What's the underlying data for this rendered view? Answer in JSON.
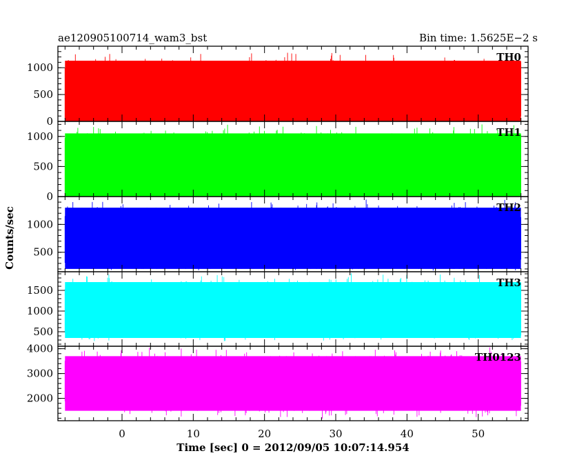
{
  "header": {
    "left_title": "ae120905100714_wam3_bst",
    "right_title": "Bin time: 1.5625E−2 s"
  },
  "chart_data": {
    "type": "line",
    "title": "ae120905100714_wam3_bst",
    "subtitle": "Bin time: 1.5625E−2 s",
    "xlabel": "Time [sec] 0 = 2012/09/05 10:07:14.954",
    "ylabel": "Counts/sec",
    "xlim": [
      -9,
      57
    ],
    "x_ticks": [
      0,
      10,
      20,
      30,
      40,
      50
    ],
    "x_range": [
      -8,
      56
    ],
    "grid": false,
    "panels": [
      {
        "name": "TH0",
        "color": "#ff0000",
        "ylim": [
          0,
          1400
        ],
        "y_ticks": [
          0,
          500,
          1000
        ],
        "band": [
          0,
          1130
        ],
        "peak": 1310,
        "floor": 0
      },
      {
        "name": "TH1",
        "color": "#00ff00",
        "ylim": [
          0,
          1250
        ],
        "y_ticks": [
          0,
          500,
          1000
        ],
        "band": [
          0,
          1050
        ],
        "peak": 1220,
        "floor": 0
      },
      {
        "name": "TH2",
        "color": "#0000ff",
        "ylim": [
          150,
          1500
        ],
        "y_ticks": [
          500,
          1000
        ],
        "band": [
          200,
          1300
        ],
        "peak": 1460,
        "floor": 160
      },
      {
        "name": "TH3",
        "color": "#00ffff",
        "ylim": [
          150,
          1950
        ],
        "y_ticks": [
          500,
          1000,
          1500
        ],
        "band": [
          350,
          1700
        ],
        "peak": 1950,
        "floor": 260
      },
      {
        "name": "TH0123",
        "color": "#ff00ff",
        "ylim": [
          1100,
          4100
        ],
        "y_ticks": [
          2000,
          3000,
          4000
        ],
        "band": [
          1500,
          3700
        ],
        "peak": 4080,
        "floor": 1150
      }
    ]
  }
}
